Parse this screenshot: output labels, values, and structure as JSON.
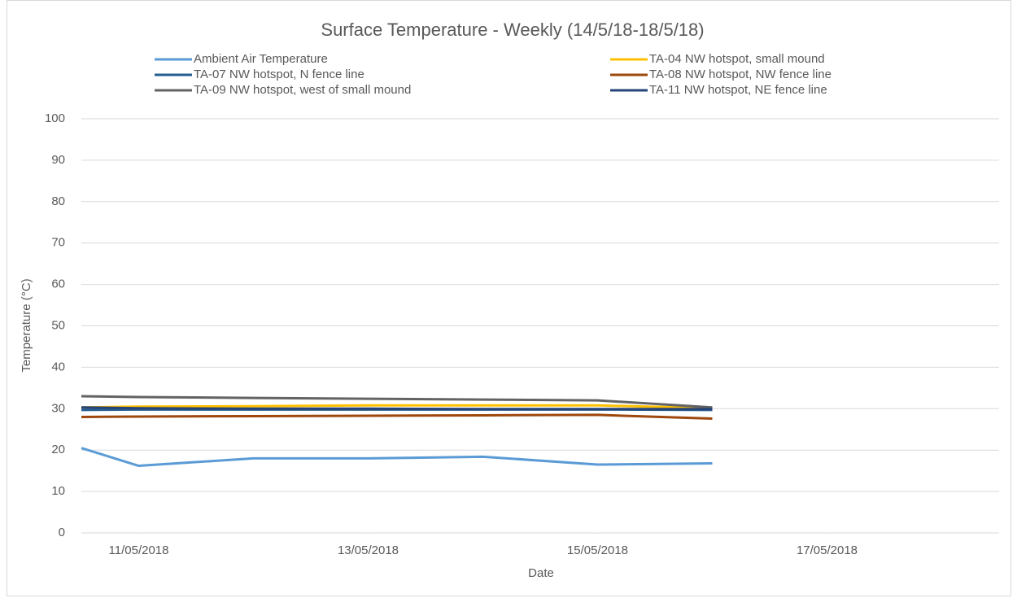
{
  "chart_data": {
    "type": "line",
    "title": "Surface Temperature - Weekly (14/5/18-18/5/18)",
    "x_label": "Date",
    "y_label": "Temperature (°C)",
    "x": [
      "2018-05-10T12:00",
      "2018-05-11",
      "2018-05-12",
      "2018-05-13",
      "2018-05-14",
      "2018-05-15",
      "2018-05-16"
    ],
    "series": [
      {
        "name": "Ambient Air Temperature",
        "color": "#5b9bd5",
        "values": [
          20.5,
          16.2,
          18,
          18,
          18.4,
          16.5,
          16.8
        ]
      },
      {
        "name": "TA-04 NW hotspot, small mound",
        "color": "#ffc000",
        "values": [
          30.3,
          30.5,
          30.6,
          30.8,
          30.8,
          30.8,
          30.1
        ]
      },
      {
        "name": "TA-07 NW hotspot, N fence line",
        "color": "#255e91",
        "values": [
          29.7,
          29.8,
          29.8,
          29.8,
          29.8,
          29.8,
          29.7
        ]
      },
      {
        "name": "TA-08 NW hotspot, NW fence line",
        "color": "#9e480e",
        "values": [
          28.0,
          28.1,
          28.2,
          28.3,
          28.4,
          28.5,
          27.6
        ]
      },
      {
        "name": "TA-09 NW hotspot, west of small mound",
        "color": "#636363",
        "values": [
          33,
          32.8,
          32.6,
          32.4,
          32.2,
          32,
          30.3
        ]
      },
      {
        "name": "TA-11 NW hotspot, NE fence line",
        "color": "#264478",
        "values": [
          30.3,
          30.1,
          30,
          30,
          29.9,
          29.9,
          29.9
        ]
      }
    ],
    "xlim": [
      "2018-05-10T12:00",
      "2018-05-18T12:00"
    ],
    "xticks": [
      {
        "value": "2018-05-11",
        "label": "11/05/2018"
      },
      {
        "value": "2018-05-13",
        "label": "13/05/2018"
      },
      {
        "value": "2018-05-15",
        "label": "15/05/2018"
      },
      {
        "value": "2018-05-17",
        "label": "17/05/2018"
      }
    ],
    "ylim": [
      0,
      100
    ],
    "yticks": [
      0,
      10,
      20,
      30,
      40,
      50,
      60,
      70,
      80,
      90,
      100
    ],
    "grid": true,
    "legend": "top"
  }
}
